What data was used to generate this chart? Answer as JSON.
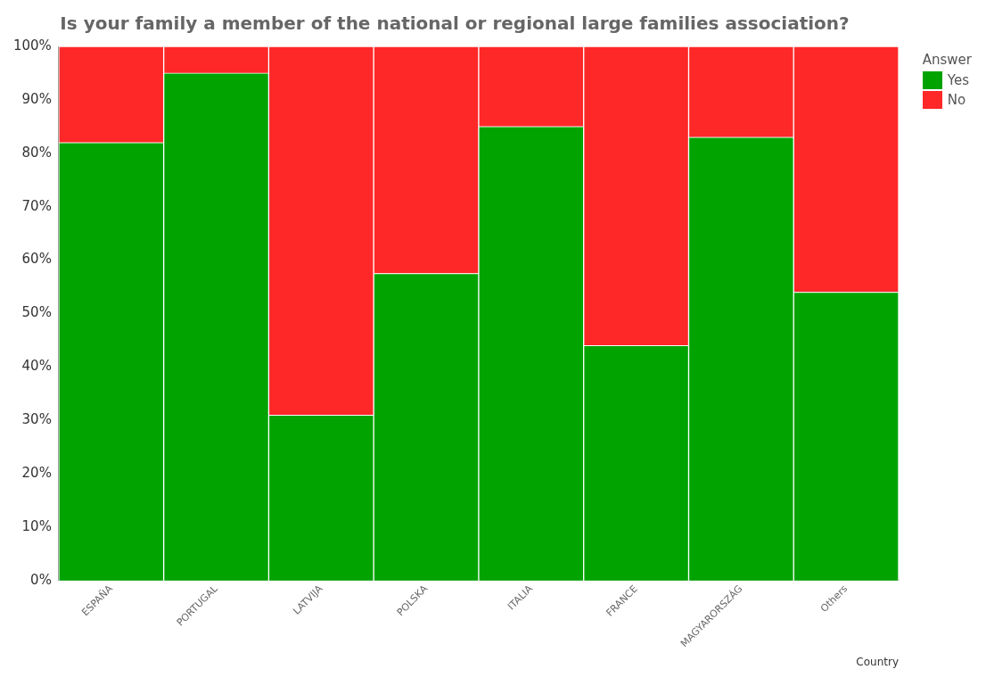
{
  "chart_data": {
    "type": "bar",
    "stacked": true,
    "title": "Is your family a member of the national or regional large families association?",
    "xlabel": "Country",
    "legend_title": "Answer",
    "legend": "top right",
    "grid": false,
    "categories": [
      "ESPAÑA",
      "PORTUGAL",
      "LATVIJA",
      "POLSKA",
      "ITALIA",
      "FRANCE",
      "MAGYARORSZÁG",
      "Others"
    ],
    "series": [
      {
        "name": "Yes",
        "color": "#00a300",
        "values": [
          82,
          95,
          31,
          57.5,
          85,
          44,
          83,
          54
        ]
      },
      {
        "name": "No",
        "color": "#ff2828",
        "values": [
          18,
          5,
          69,
          42.5,
          15,
          56,
          17,
          46
        ]
      }
    ],
    "ylim": [
      0,
      100
    ],
    "yticks": [
      {
        "value": 0,
        "label": "0%"
      },
      {
        "value": 10,
        "label": "10%"
      },
      {
        "value": 20,
        "label": "20%"
      },
      {
        "value": 30,
        "label": "30%"
      },
      {
        "value": 40,
        "label": "40%"
      },
      {
        "value": 50,
        "label": "50%"
      },
      {
        "value": 60,
        "label": "60%"
      },
      {
        "value": 70,
        "label": "70%"
      },
      {
        "value": 80,
        "label": "80%"
      },
      {
        "value": 90,
        "label": "90%"
      },
      {
        "value": 100,
        "label": "100%"
      }
    ]
  }
}
